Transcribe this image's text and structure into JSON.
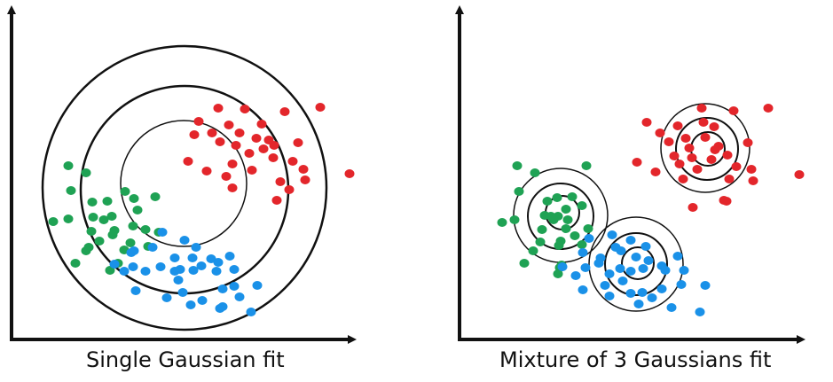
{
  "captions": {
    "left": "Single Gaussian fit",
    "right": "Mixture of 3 Gaussians fit"
  },
  "colors": {
    "red": "#e3262b",
    "green": "#1fa254",
    "blue": "#1a91e8",
    "axis": "#111111",
    "contour": "#111111"
  },
  "chart_data": [
    {
      "type": "scatter",
      "title": "",
      "xlabel": "",
      "ylabel": "",
      "contours": "single Gaussian, 3 concentric circles",
      "series": [
        {
          "color": "red",
          "count": 32
        },
        {
          "color": "green",
          "count": 29
        },
        {
          "color": "blue",
          "count": 35
        }
      ]
    },
    {
      "type": "scatter",
      "title": "",
      "xlabel": "",
      "ylabel": "",
      "contours": "mixture of 3 Gaussians, 3 concentric circles each",
      "series": [
        {
          "color": "red",
          "count": 32
        },
        {
          "color": "green",
          "count": 29
        },
        {
          "color": "blue",
          "count": 35
        }
      ]
    }
  ]
}
